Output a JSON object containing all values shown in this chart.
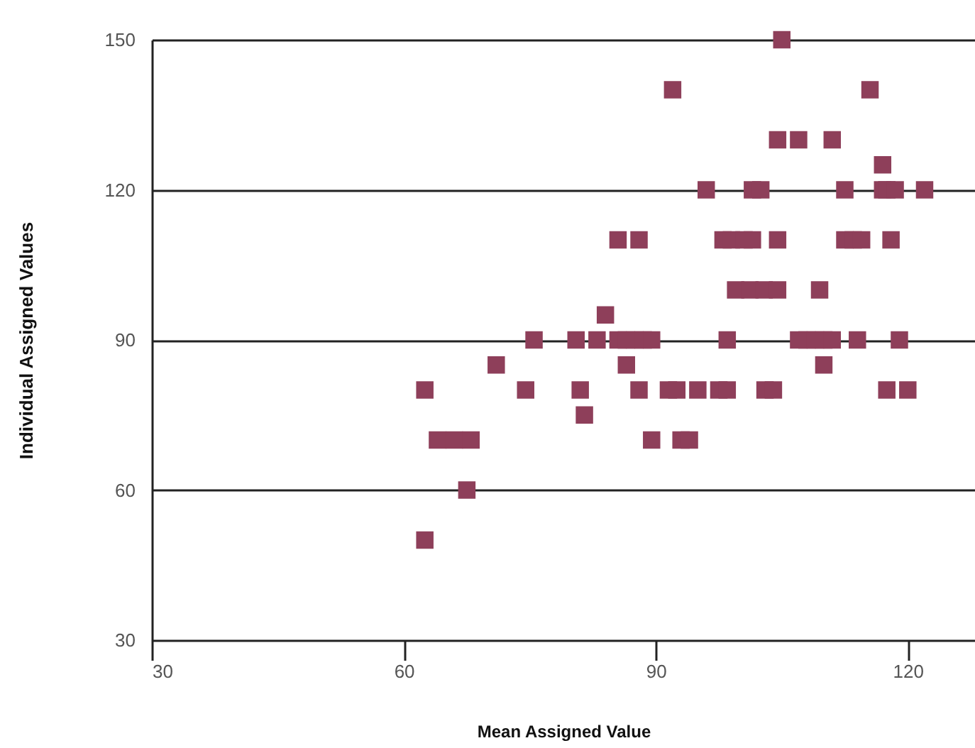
{
  "chart_data": {
    "type": "scatter",
    "xlabel": "Mean Assigned Value",
    "ylabel": "Individual Assigned Values",
    "x": [
      62.5,
      62.5,
      64,
      66,
      68,
      67.5,
      71,
      74.5,
      75.5,
      80.5,
      81,
      81.5,
      83,
      84,
      85.5,
      86.5,
      87.5,
      88.5,
      89.5,
      85.5,
      86.5,
      88,
      88,
      89.5,
      91.5,
      92.5,
      93,
      94,
      95,
      97.5,
      98.5,
      98.5,
      99.5,
      101.2,
      102.9,
      104.5,
      103,
      104,
      105,
      92,
      115.5,
      104.5,
      107,
      111,
      117,
      96,
      101.5,
      102.5,
      112.5,
      117,
      117.5,
      118.5,
      122,
      98,
      99,
      100.5,
      101.5,
      104.5,
      112.5,
      113.5,
      114.5,
      118,
      109.5,
      107,
      108,
      109,
      110,
      111,
      114,
      119,
      117.5,
      120,
      110
    ],
    "values": [
      50,
      80,
      70,
      70,
      70,
      60,
      85,
      80,
      90,
      90,
      80,
      75,
      90,
      95,
      90,
      90,
      90,
      90,
      90,
      110,
      85,
      80,
      110,
      70,
      80,
      80,
      70,
      70,
      80,
      80,
      80,
      90,
      100,
      100,
      100,
      100,
      80,
      80,
      150,
      140,
      140,
      130,
      130,
      130,
      125,
      120,
      120,
      120,
      120,
      120,
      120,
      120,
      120,
      110,
      110,
      110,
      110,
      110,
      110,
      110,
      110,
      110,
      100,
      90,
      90,
      90,
      90,
      90,
      90,
      90,
      80,
      80,
      85
    ],
    "color": "#8e3f5a",
    "marker": "square",
    "grid": "y",
    "xlim": [
      30,
      128
    ],
    "xticks": [
      30,
      60,
      90,
      120
    ],
    "ylim": [
      30,
      150
    ],
    "yticks": [
      30,
      60,
      90,
      120,
      150
    ]
  }
}
